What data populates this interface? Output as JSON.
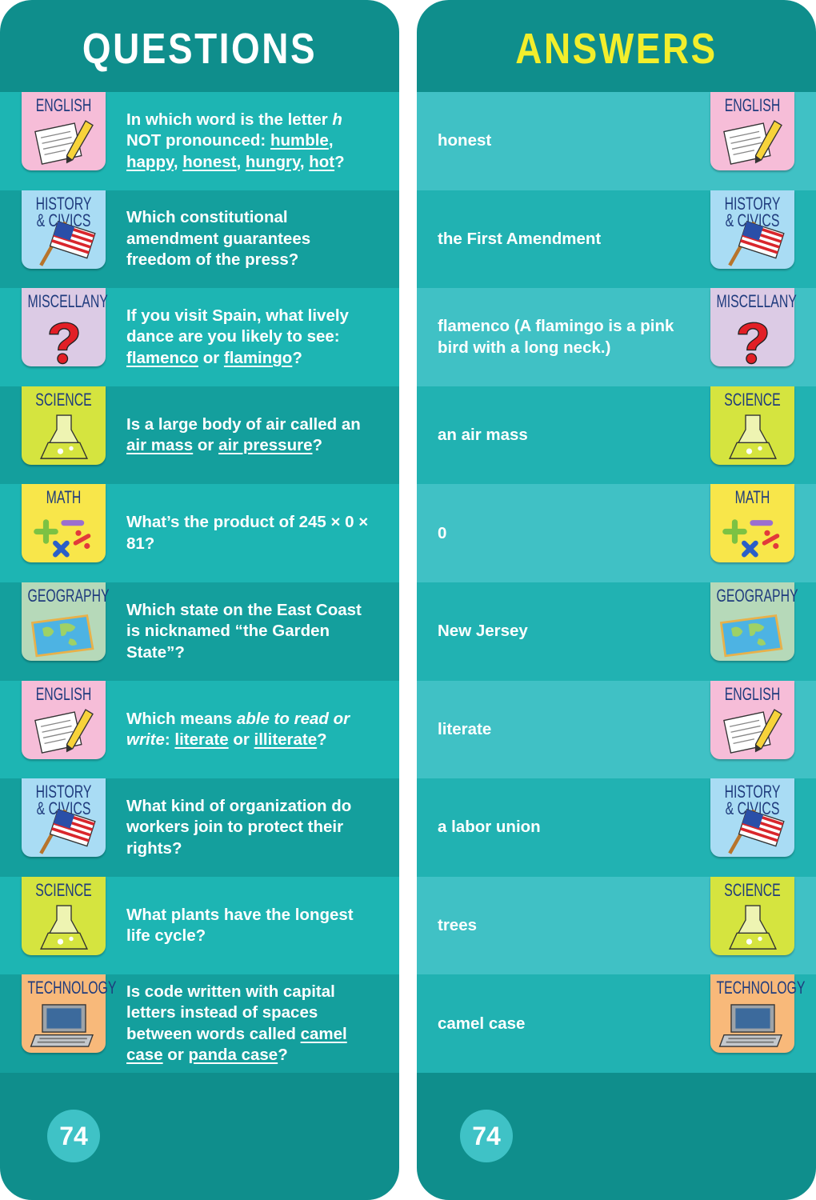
{
  "questions": {
    "title": "QUESTIONS",
    "page_number": "74",
    "rows": [
      {
        "category": "ENGLISH",
        "badge_color": "#f6bdd8",
        "icon": "paper",
        "segments": [
          {
            "text": "In which word is the letter "
          },
          {
            "text": "h",
            "style": "italic"
          },
          {
            "text": " NOT pronounced: "
          },
          {
            "text": "humble",
            "style": "underline"
          },
          {
            "text": ", "
          },
          {
            "text": "happy",
            "style": "underline"
          },
          {
            "text": ", "
          },
          {
            "text": "honest",
            "style": "underline"
          },
          {
            "text": ", "
          },
          {
            "text": "hungry",
            "style": "underline"
          },
          {
            "text": ", "
          },
          {
            "text": "hot",
            "style": "underline"
          },
          {
            "text": "?"
          }
        ]
      },
      {
        "category": "HISTORY\n& CIVICS",
        "badge_color": "#a9dcf4",
        "icon": "flag",
        "segments": [
          {
            "text": "Which constitutional amendment guarantees freedom of the press?"
          }
        ]
      },
      {
        "category": "MISCELLANY",
        "badge_color": "#dccbe5",
        "icon": "question",
        "segments": [
          {
            "text": "If you visit Spain, what lively dance are you likely to see: "
          },
          {
            "text": "flamenco",
            "style": "underline"
          },
          {
            "text": " or "
          },
          {
            "text": "flamingo",
            "style": "underline"
          },
          {
            "text": "?"
          }
        ]
      },
      {
        "category": "SCIENCE",
        "badge_color": "#d5e43f",
        "icon": "flask",
        "segments": [
          {
            "text": "Is a large body of air called an "
          },
          {
            "text": "air mass",
            "style": "underline"
          },
          {
            "text": " or "
          },
          {
            "text": "air pressure",
            "style": "underline"
          },
          {
            "text": "?"
          }
        ]
      },
      {
        "category": "MATH",
        "badge_color": "#f8e64a",
        "icon": "math",
        "segments": [
          {
            "text": "What’s the product of 245 × 0 × 81?"
          }
        ]
      },
      {
        "category": "GEOGRAPHY",
        "badge_color": "#b6d9b9",
        "icon": "map",
        "segments": [
          {
            "text": "Which state on the East Coast is nicknamed “the Garden State”?"
          }
        ]
      },
      {
        "category": "ENGLISH",
        "badge_color": "#f6bdd8",
        "icon": "paper",
        "segments": [
          {
            "text": "Which means "
          },
          {
            "text": "able to read or write",
            "style": "italic"
          },
          {
            "text": ": "
          },
          {
            "text": "literate",
            "style": "underline"
          },
          {
            "text": " or "
          },
          {
            "text": "illiterate",
            "style": "underline"
          },
          {
            "text": "?"
          }
        ]
      },
      {
        "category": "HISTORY\n& CIVICS",
        "badge_color": "#a9dcf4",
        "icon": "flag",
        "segments": [
          {
            "text": "What kind of organization do workers join to protect their rights?"
          }
        ]
      },
      {
        "category": "SCIENCE",
        "badge_color": "#d5e43f",
        "icon": "flask",
        "segments": [
          {
            "text": "What plants have the longest life cycle?"
          }
        ]
      },
      {
        "category": "TECHNOLOGY",
        "badge_color": "#f8b97a",
        "icon": "laptop",
        "segments": [
          {
            "text": "Is code written with capital letters instead of spaces between words called "
          },
          {
            "text": "camel case",
            "style": "underline"
          },
          {
            "text": " or "
          },
          {
            "text": "panda case",
            "style": "underline"
          },
          {
            "text": "?"
          }
        ]
      }
    ]
  },
  "answers": {
    "title": "ANSWERS",
    "page_number": "74",
    "rows": [
      {
        "answer": "honest",
        "category": "ENGLISH",
        "badge_color": "#f6bdd8",
        "icon": "paper"
      },
      {
        "answer": "the First Amendment",
        "category": "HISTORY\n& CIVICS",
        "badge_color": "#a9dcf4",
        "icon": "flag"
      },
      {
        "answer": "flamenco (A flamingo is a pink bird with a long neck.)",
        "category": "MISCELLANY",
        "badge_color": "#dccbe5",
        "icon": "question"
      },
      {
        "answer": "an air mass",
        "category": "SCIENCE",
        "badge_color": "#d5e43f",
        "icon": "flask"
      },
      {
        "answer": "0",
        "category": "MATH",
        "badge_color": "#f8e64a",
        "icon": "math"
      },
      {
        "answer": "New Jersey",
        "category": "GEOGRAPHY",
        "badge_color": "#b6d9b9",
        "icon": "map"
      },
      {
        "answer": "literate",
        "category": "ENGLISH",
        "badge_color": "#f6bdd8",
        "icon": "paper"
      },
      {
        "answer": "a labor union",
        "category": "HISTORY\n& CIVICS",
        "badge_color": "#a9dcf4",
        "icon": "flag"
      },
      {
        "answer": "trees",
        "category": "SCIENCE",
        "badge_color": "#d5e43f",
        "icon": "flask"
      },
      {
        "answer": "camel case",
        "category": "TECHNOLOGY",
        "badge_color": "#f8b97a",
        "icon": "laptop"
      }
    ]
  }
}
